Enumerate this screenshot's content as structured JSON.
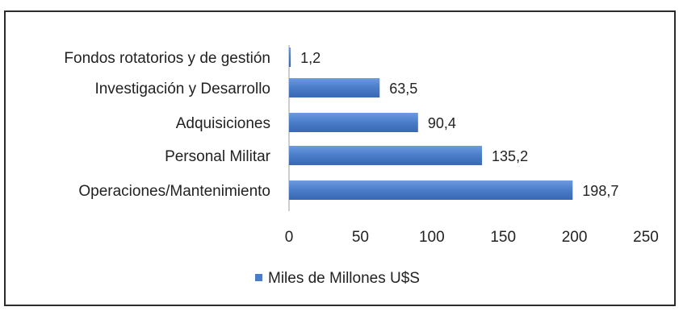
{
  "chart_data": {
    "type": "bar",
    "orientation": "horizontal",
    "categories": [
      "Fondos rotatorios y de gestión",
      "Investigación y Desarrollo",
      "Adquisiciones",
      "Personal Militar",
      "Operaciones/Mantenimiento"
    ],
    "series": [
      {
        "name": "Miles de Millones U$S",
        "values": [
          1.2,
          63.5,
          90.4,
          135.2,
          198.7
        ],
        "value_labels": [
          "1,2",
          "63,5",
          "90,4",
          "135,2",
          "198,7"
        ],
        "color": "#4a7cc9"
      }
    ],
    "xlim": [
      0,
      250
    ],
    "x_ticks": [
      0,
      50,
      100,
      150,
      200,
      250
    ],
    "grid": false,
    "legend": "bottom"
  }
}
